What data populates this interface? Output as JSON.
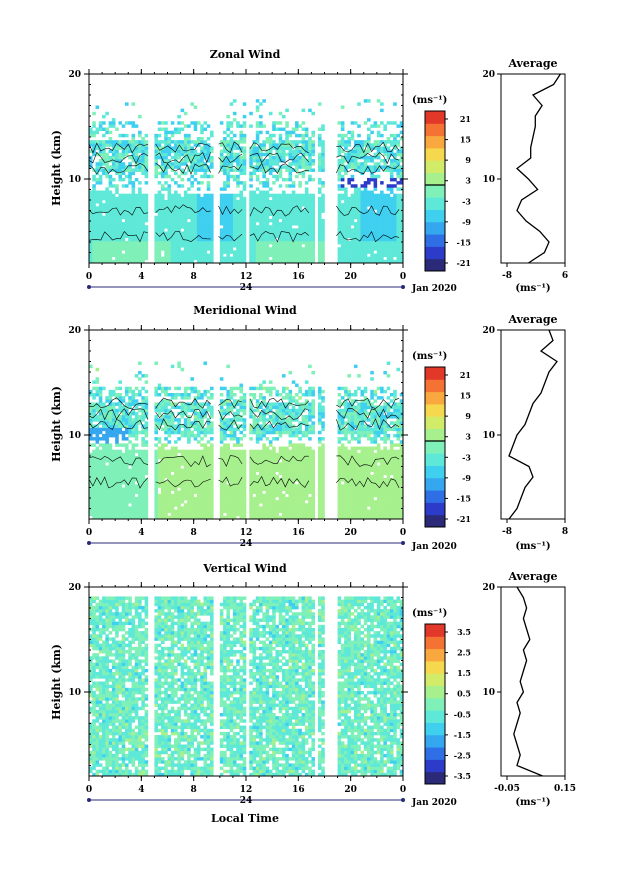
{
  "xlabel_bottom": "Local Time",
  "date_label": "Jan 2020",
  "day_label": "24",
  "x_ticks": [
    "0",
    "4",
    "8",
    "12",
    "16",
    "20",
    "0"
  ],
  "height_label": "Height (km)",
  "unit_label": "(ms⁻¹)",
  "avg_title": "Average",
  "avg_unit": "(ms⁻¹)",
  "colors": {
    "scale": [
      "#2a2a78",
      "#2c3cc8",
      "#2f6fe6",
      "#35a6f0",
      "#3fd0f0",
      "#5ee8d8",
      "#7ef0b8",
      "#a6f08e",
      "#d2ec6a",
      "#f6d84e",
      "#f8a83e",
      "#f47232",
      "#e2382a"
    ],
    "missing": "#ffffff"
  },
  "chart_data": [
    {
      "type": "heatmap",
      "title": "Zonal Wind",
      "ylabel": "Height (km)",
      "xlabel": "",
      "xlim": [
        0,
        24
      ],
      "ylim": [
        2,
        20
      ],
      "y_ticks": [
        "10",
        "20"
      ],
      "colorbar": {
        "label": "(ms⁻¹)",
        "ticks": [
          "21",
          "15",
          "9",
          "3",
          "-3",
          "-9",
          "-15",
          "-21"
        ],
        "range": [
          -24,
          24
        ]
      },
      "profile": {
        "title": "Average",
        "xlabel": "(ms⁻¹)",
        "xticks": [
          "-8",
          "6"
        ],
        "xlim": [
          -8,
          6
        ],
        "y_ticks": [
          "10",
          "20"
        ],
        "heights": [
          2,
          3,
          4,
          5,
          6,
          7,
          8,
          9,
          10,
          11,
          12,
          13,
          14,
          15,
          16,
          17,
          18,
          19,
          20
        ],
        "values": [
          -2,
          1.5,
          2.5,
          0.5,
          -2.5,
          -4.5,
          -3.5,
          0,
          -2,
          -4.5,
          -1.5,
          -1.5,
          -1,
          -0.5,
          -0.5,
          1,
          -1,
          3.5,
          5
        ]
      }
    },
    {
      "type": "heatmap",
      "title": "Meridional Wind",
      "ylabel": "Height (km)",
      "xlabel": "",
      "xlim": [
        0,
        24
      ],
      "ylim": [
        2,
        20
      ],
      "y_ticks": [
        "10",
        "20"
      ],
      "colorbar": {
        "label": "(ms⁻¹)",
        "ticks": [
          "21",
          "15",
          "9",
          "3",
          "-3",
          "-9",
          "-15",
          "-21"
        ],
        "range": [
          -24,
          24
        ]
      },
      "profile": {
        "title": "Average",
        "xlabel": "(ms⁻¹)",
        "xticks": [
          "-8",
          "8"
        ],
        "xlim": [
          -8,
          8
        ],
        "y_ticks": [
          "10",
          "20"
        ],
        "heights": [
          2,
          3,
          4,
          5,
          6,
          7,
          8,
          9,
          10,
          11,
          12,
          13,
          14,
          15,
          16,
          17,
          18,
          19,
          20
        ],
        "values": [
          -6,
          -4,
          -3,
          -2,
          0,
          -1,
          -6,
          -5,
          -4,
          -2,
          -1,
          0,
          2,
          3,
          4,
          6,
          2,
          5,
          4
        ]
      }
    },
    {
      "type": "heatmap",
      "title": "Vertical Wind",
      "ylabel": "Height (km)",
      "xlabel": "Local Time",
      "xlim": [
        0,
        24
      ],
      "ylim": [
        2,
        20
      ],
      "y_ticks": [
        "10",
        "20"
      ],
      "colorbar": {
        "label": "(ms⁻¹)",
        "ticks": [
          "3.5",
          "2.5",
          "1.5",
          "0.5",
          "-0.5",
          "-1.5",
          "-2.5",
          "-3.5"
        ],
        "range": [
          -4,
          4
        ]
      },
      "profile": {
        "title": "Average",
        "xlabel": "(ms⁻¹)",
        "xticks": [
          "-0.05",
          "0.15"
        ],
        "xlim": [
          -0.05,
          0.15
        ],
        "y_ticks": [
          "10",
          "20"
        ],
        "heights": [
          2,
          3,
          4,
          5,
          6,
          7,
          8,
          9,
          10,
          11,
          12,
          13,
          14,
          15,
          16,
          17,
          18,
          19,
          20
        ],
        "values": [
          0.08,
          0.0,
          0.01,
          0.0,
          -0.01,
          0.0,
          0.01,
          0.0,
          0.02,
          0.01,
          0.02,
          0.03,
          0.02,
          0.04,
          0.03,
          0.02,
          0.03,
          0.02,
          0.0
        ]
      }
    }
  ]
}
